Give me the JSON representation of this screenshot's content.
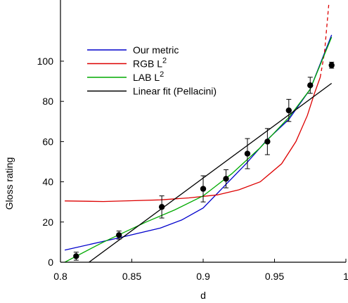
{
  "chart_data": {
    "type": "line",
    "title": "",
    "xlabel": "d",
    "ylabel": "Gloss rating",
    "xlim": [
      0.8,
      1.0
    ],
    "ylim": [
      0,
      115
    ],
    "xticks": [
      0.8,
      0.85,
      0.9,
      0.95,
      1.0
    ],
    "xtick_labels": [
      "0.8",
      "0.85",
      "0.9",
      "0.95",
      "1"
    ],
    "yticks": [
      0,
      20,
      40,
      60,
      80,
      100
    ],
    "ytick_labels": [
      "0",
      "20",
      "40",
      "60",
      "80",
      "100"
    ],
    "grid": false,
    "legend_position": "top-left",
    "legend": [
      {
        "label": "Our metric",
        "sup": "",
        "color": "#0000cc"
      },
      {
        "label": "RGB L",
        "sup": "2",
        "color": "#dd0000"
      },
      {
        "label": "LAB L",
        "sup": "2",
        "color": "#00aa00"
      },
      {
        "label": "Linear fit (Pellacini)",
        "sup": "",
        "color": "#000000"
      }
    ],
    "series": [
      {
        "name": "Our metric",
        "color": "#0000cc",
        "x": [
          0.803,
          0.84,
          0.87,
          0.885,
          0.9,
          0.915,
          0.93,
          0.945,
          0.96,
          0.975,
          0.99
        ],
        "y": [
          6,
          12,
          17,
          21,
          27,
          38,
          49,
          61,
          71,
          86,
          113
        ]
      },
      {
        "name": "RGB L2",
        "color": "#dd0000",
        "x": [
          0.803,
          0.83,
          0.85,
          0.87,
          0.89,
          0.91,
          0.925,
          0.94,
          0.955,
          0.965,
          0.973,
          0.978,
          0.982
        ],
        "y": [
          30.5,
          30.2,
          30.6,
          31,
          32,
          33.5,
          36,
          40,
          49,
          60,
          73,
          84,
          92
        ]
      },
      {
        "name": "RGB L2 (extension)",
        "color": "#dd0000",
        "dashed": true,
        "x": [
          0.982,
          0.985,
          0.988
        ],
        "y": [
          92,
          104,
          128
        ]
      },
      {
        "name": "LAB L2",
        "color": "#00aa00",
        "x": [
          0.803,
          0.83,
          0.86,
          0.88,
          0.9,
          0.92,
          0.94,
          0.96,
          0.975,
          0.99
        ],
        "y": [
          0,
          10,
          20,
          26,
          33,
          44,
          57,
          72,
          86,
          112
        ]
      },
      {
        "name": "Linear fit (Pellacini)",
        "color": "#000000",
        "x": [
          0.82,
          0.99
        ],
        "y": [
          0,
          89
        ]
      }
    ],
    "points": {
      "x": [
        0.811,
        0.841,
        0.871,
        0.9,
        0.916,
        0.931,
        0.945,
        0.96,
        0.975,
        0.99
      ],
      "y": [
        3,
        13.5,
        27.5,
        36.5,
        41.5,
        54,
        60,
        75.5,
        88,
        98
      ],
      "err": [
        2,
        2,
        5.5,
        6.5,
        4.5,
        7.5,
        6.5,
        5.5,
        4,
        1.5
      ]
    }
  }
}
